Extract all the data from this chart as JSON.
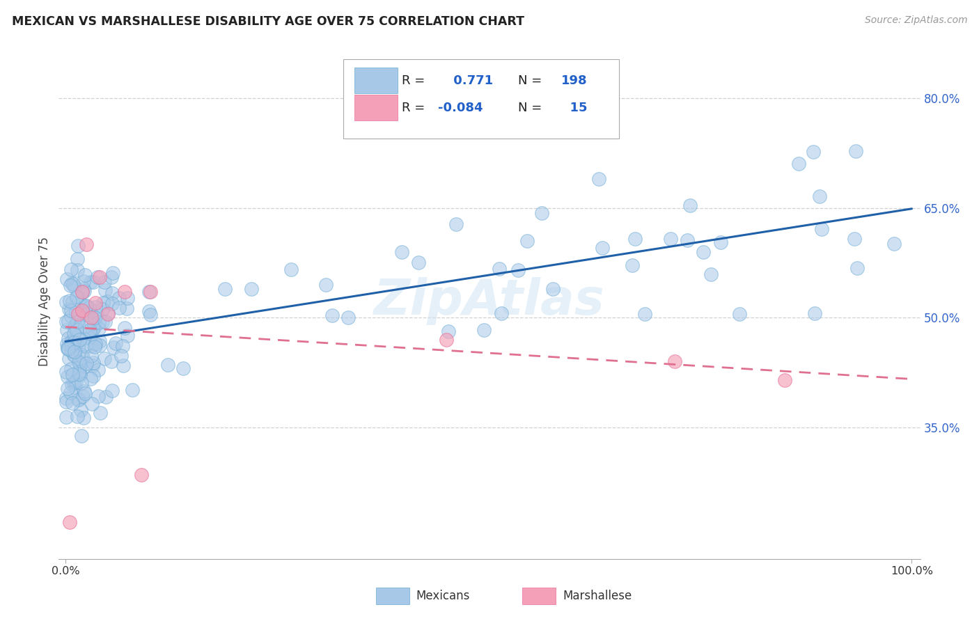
{
  "title": "MEXICAN VS MARSHALLESE DISABILITY AGE OVER 75 CORRELATION CHART",
  "source": "Source: ZipAtlas.com",
  "ylabel": "Disability Age Over 75",
  "mexican_color": "#a8c8e8",
  "mexican_edge_color": "#6aaad4",
  "marshallese_color": "#f4a0b8",
  "marshallese_edge_color": "#e87098",
  "trendline_mexican_color": "#2060a8",
  "trendline_marshallese_color": "#e07090",
  "legend_r_mexican": "0.771",
  "legend_n_mexican": "198",
  "legend_r_marshallese": "-0.084",
  "legend_n_marshallese": "15",
  "ytick_values": [
    0.35,
    0.5,
    0.65,
    0.8
  ],
  "ytick_labels": [
    "35.0%",
    "50.0%",
    "65.0%",
    "80.0%"
  ],
  "background_color": "#ffffff",
  "watermark_text": "ZipAtlas",
  "watermark_color": "#d0e4f4",
  "legend_value_color": "#2060c8",
  "bottom_legend_label1": "Mexicans",
  "bottom_legend_label2": "Marshallese"
}
